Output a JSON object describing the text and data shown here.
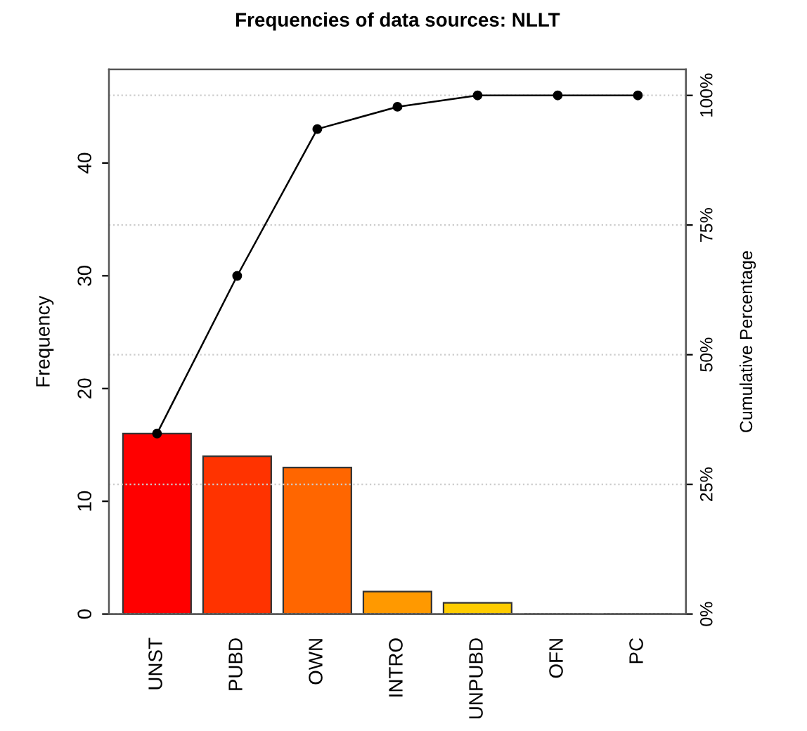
{
  "chart_data": {
    "type": "bar",
    "title": "Frequencies of data sources: NLLT",
    "ylabel": "Frequency",
    "y2label": "Cumulative Percentage",
    "categories": [
      "UNST",
      "PUBD",
      "OWN",
      "INTRO",
      "UNPUBD",
      "OFN",
      "PC"
    ],
    "series": [
      {
        "values": [
          16,
          14,
          13,
          2,
          1,
          0,
          0
        ],
        "colors": [
          "#ff0000",
          "#ff3300",
          "#ff6600",
          "#ff9900",
          "#ffcc00",
          "#333333",
          "#333333"
        ]
      },
      {
        "type": "line",
        "axis": "y2",
        "color": "#000000",
        "marker": "circle",
        "values": [
          34.8,
          65.2,
          93.5,
          97.8,
          100,
          100,
          100
        ]
      }
    ],
    "ylim": [
      0,
      48.3
    ],
    "yticks": [
      0,
      10,
      20,
      30,
      40
    ],
    "y2lim": [
      0,
      105
    ],
    "y2ticks": [
      {
        "value": 0,
        "label": "0%"
      },
      {
        "value": 25,
        "label": "25%"
      },
      {
        "value": 50,
        "label": "50%"
      },
      {
        "value": 75,
        "label": "75%"
      },
      {
        "value": 100,
        "label": "100%"
      }
    ],
    "grid": "y",
    "legend": false
  }
}
